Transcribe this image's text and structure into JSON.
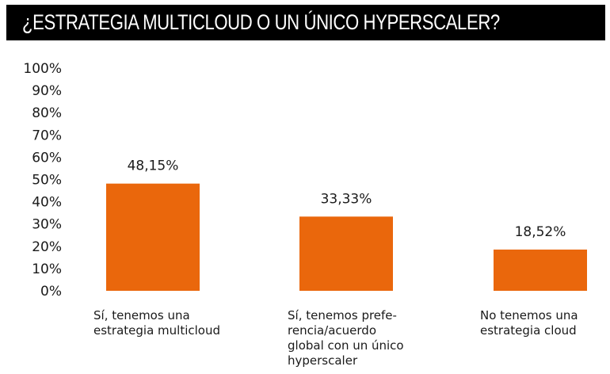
{
  "chart_data": {
    "type": "bar",
    "title": "¿ESTRATEGIA MULTICLOUD O UN ÚNICO HYPERSCALER?",
    "categories": [
      "Sí, tenemos una\nestrategia multicloud",
      "Sí, tenemos prefe-\nrencia/acuerdo\nglobal con un único\nhyperscaler",
      "No tenemos una\nestrategia cloud"
    ],
    "values": [
      48.15,
      33.33,
      18.52
    ],
    "data_labels": [
      "48,15%",
      "33,33%",
      "18,52%"
    ],
    "ylim": [
      0,
      100
    ],
    "yticks": [
      "0%",
      "10%",
      "20%",
      "30%",
      "40%",
      "50%",
      "60%",
      "70%",
      "80%",
      "90%",
      "100%"
    ],
    "grid": false,
    "bar_color": "#EA670C",
    "title_bg": "#000000"
  }
}
